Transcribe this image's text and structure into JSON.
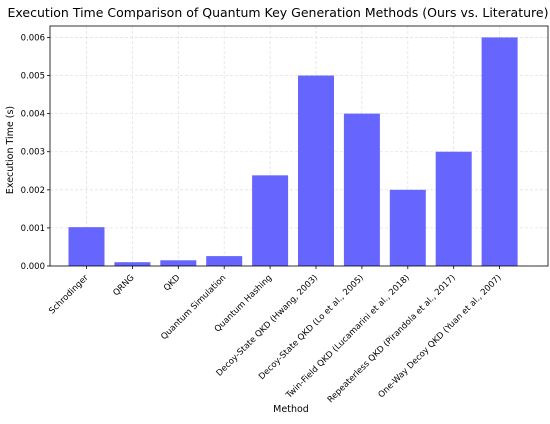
{
  "chart_data": {
    "type": "bar",
    "title": "Execution Time Comparison of Quantum Key Generation Methods (Ours vs. Literature)",
    "xlabel": "Method",
    "ylabel": "Execution Time (s)",
    "categories": [
      "Schrodinger",
      "QRNG",
      "QKD",
      "Quantum Simulation",
      "Quantum Hashing",
      "Decoy-State QKD (Hwang, 2003)",
      "Decoy-State QKD (Lo et al., 2005)",
      "Twin-Field QKD (Lucamarini et al., 2018)",
      "Repeaterless QKD (Pirandola et al., 2017)",
      "One-Way Decoy QKD (Yuan et al., 2007)"
    ],
    "values": [
      0.00102,
      0.0001,
      0.00015,
      0.00026,
      0.00238,
      0.005,
      0.004,
      0.002,
      0.003,
      0.006
    ],
    "ylim": [
      0,
      0.0063
    ],
    "yticks": [
      "0.000",
      "0.001",
      "0.002",
      "0.003",
      "0.004",
      "0.005",
      "0.006"
    ],
    "ytick_values": [
      0,
      0.001,
      0.002,
      0.003,
      0.004,
      0.005,
      0.006
    ],
    "grid": true,
    "bar_color": "#6666ff"
  }
}
